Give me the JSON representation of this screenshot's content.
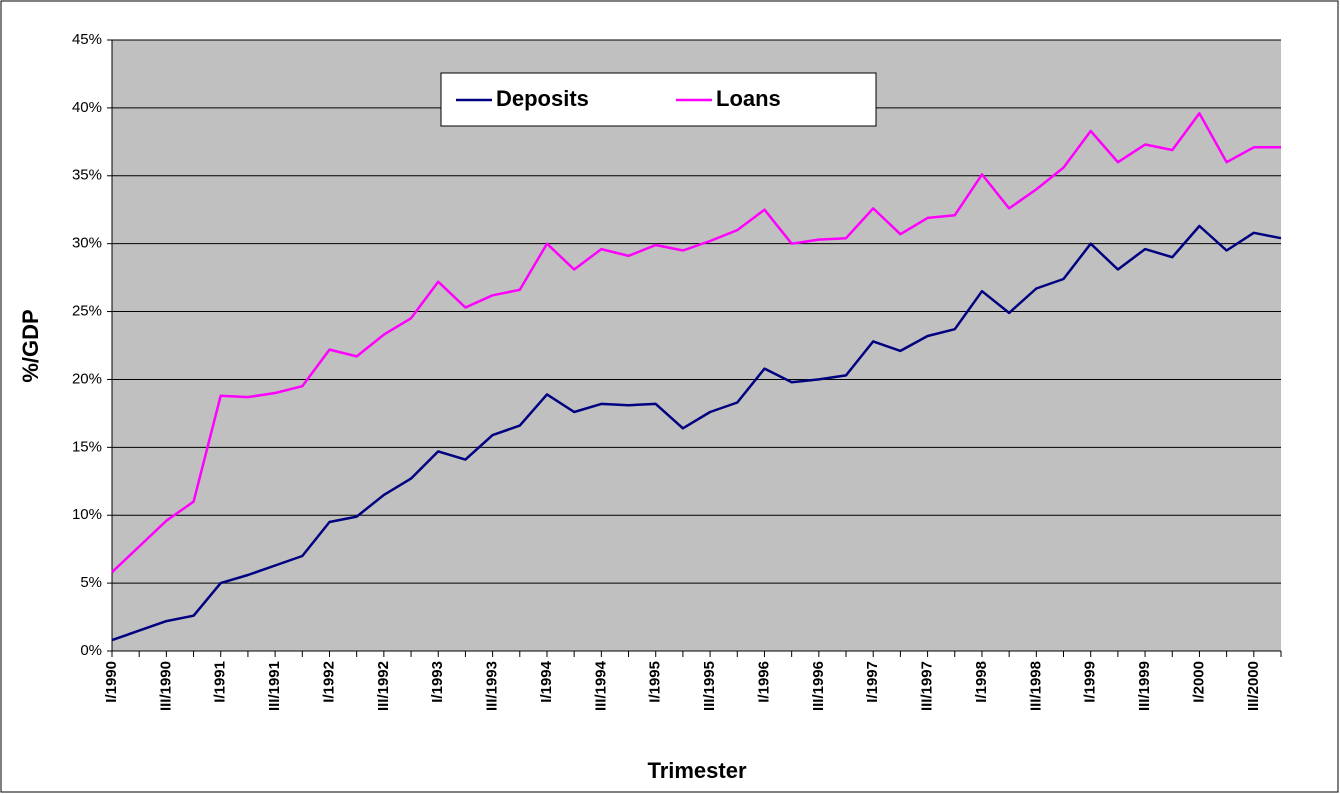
{
  "chart_data": {
    "type": "line",
    "x_label": "Trimester",
    "y_label": "%/GDP",
    "categories": [
      "I/1990",
      null,
      "III/1990",
      null,
      "I/1991",
      null,
      "III/1991",
      null,
      "I/1992",
      null,
      "III/1992",
      null,
      "I/1993",
      null,
      "III/1993",
      null,
      "I/1994",
      null,
      "III/1994",
      null,
      "I/1995",
      null,
      "III/1995",
      null,
      "I/1996",
      null,
      "III/1996",
      null,
      "I/1997",
      null,
      "III/1997",
      null,
      "I/1998",
      null,
      "III/1998",
      null,
      "I/1999",
      null,
      "III/1999",
      null,
      "I/2000",
      null,
      "III/2000",
      null
    ],
    "series": [
      {
        "name": "Deposits",
        "color": "#000080",
        "values": [
          0.8,
          1.5,
          2.2,
          2.6,
          5.0,
          5.6,
          6.3,
          7.0,
          9.5,
          9.9,
          11.5,
          12.7,
          14.7,
          14.1,
          15.9,
          16.6,
          18.9,
          17.6,
          18.2,
          18.1,
          18.2,
          16.4,
          17.6,
          18.3,
          20.8,
          19.8,
          20.0,
          20.3,
          22.8,
          22.1,
          23.2,
          23.7,
          26.5,
          24.9,
          26.7,
          27.4,
          30.0,
          28.1,
          29.6,
          29.0,
          31.3,
          29.5,
          30.8,
          30.4
        ]
      },
      {
        "name": "Loans",
        "color": "#ff00ff",
        "values": [
          5.8,
          7.7,
          9.6,
          11.0,
          18.8,
          18.7,
          19.0,
          19.5,
          22.2,
          21.7,
          23.3,
          24.5,
          27.2,
          25.3,
          26.2,
          26.6,
          30.0,
          28.1,
          29.6,
          29.1,
          29.9,
          29.5,
          30.2,
          31.0,
          32.5,
          30.0,
          30.3,
          30.4,
          32.6,
          30.7,
          31.9,
          32.1,
          35.1,
          32.6,
          34.0,
          35.6,
          38.3,
          36.0,
          37.3,
          36.9,
          39.6,
          36.0,
          37.1,
          37.1
        ]
      }
    ],
    "ylim": [
      0,
      45
    ],
    "yticks": [
      {
        "value": 0,
        "label": "0%"
      },
      {
        "value": 5,
        "label": "5%"
      },
      {
        "value": 10,
        "label": "10%"
      },
      {
        "value": 15,
        "label": "15%"
      },
      {
        "value": 20,
        "label": "20%"
      },
      {
        "value": 25,
        "label": "25%"
      },
      {
        "value": 30,
        "label": "30%"
      },
      {
        "value": 35,
        "label": "35%"
      },
      {
        "value": 40,
        "label": "40%"
      },
      {
        "value": 45,
        "label": "45%"
      }
    ],
    "grid": true,
    "legend": "top",
    "plot_background": "#c0c0c0"
  }
}
